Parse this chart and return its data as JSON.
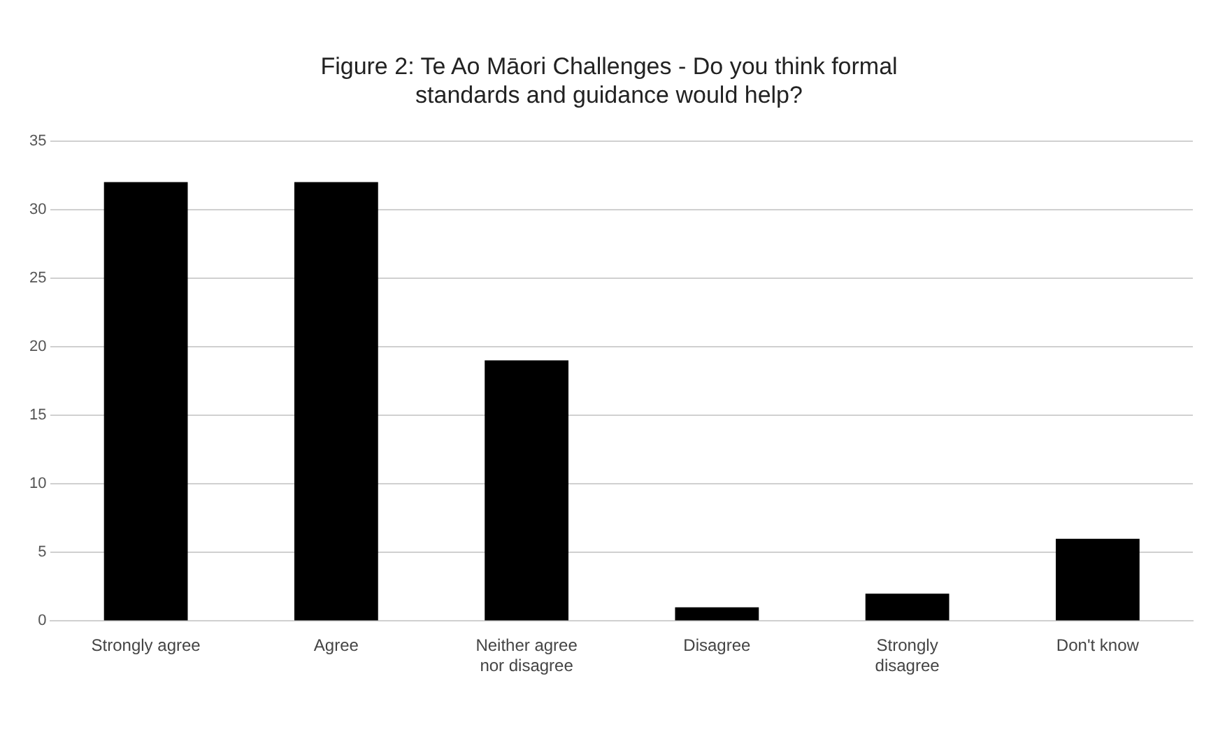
{
  "chart_data": {
    "type": "bar",
    "title": "Figure 2: Te Ao Māori Challenges - Do you think formal standards and guidance would help?",
    "categories": [
      "Strongly agree",
      "Agree",
      "Neither agree nor disagree",
      "Disagree",
      "Strongly disagree",
      "Don't know"
    ],
    "values": [
      32,
      32,
      19,
      1,
      2,
      6
    ],
    "color": "#000000",
    "ylim": [
      0,
      35
    ],
    "yticks": [
      0,
      5,
      10,
      15,
      20,
      25,
      30,
      35
    ],
    "grid": "y"
  }
}
